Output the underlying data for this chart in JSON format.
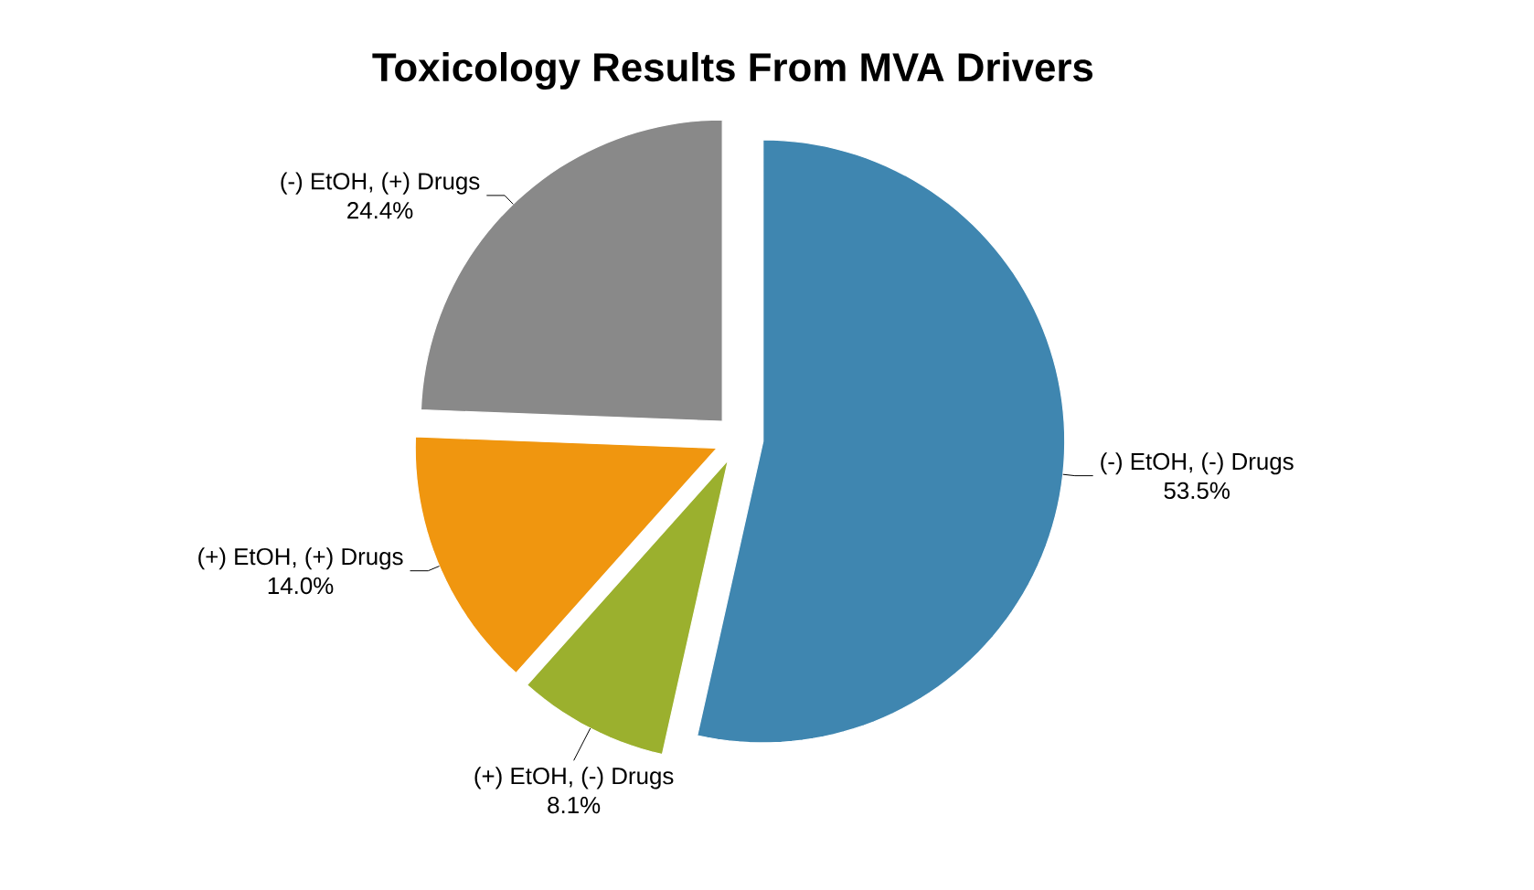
{
  "chart_data": {
    "type": "pie",
    "title": "Toxicology Results From MVA Drivers",
    "categories": [
      "(-) EtOH, (-) Drugs",
      "(+) EtOH, (-) Drugs",
      "(+) EtOH, (+) Drugs",
      "(-) EtOH, (+) Drugs"
    ],
    "values": [
      53.5,
      8.1,
      14.0,
      24.4
    ],
    "value_labels": [
      "53.5%",
      "8.1%",
      "14.0%",
      "24.4%"
    ],
    "colors": [
      "#3f86b0",
      "#9bb02e",
      "#f0960f",
      "#898989"
    ]
  }
}
